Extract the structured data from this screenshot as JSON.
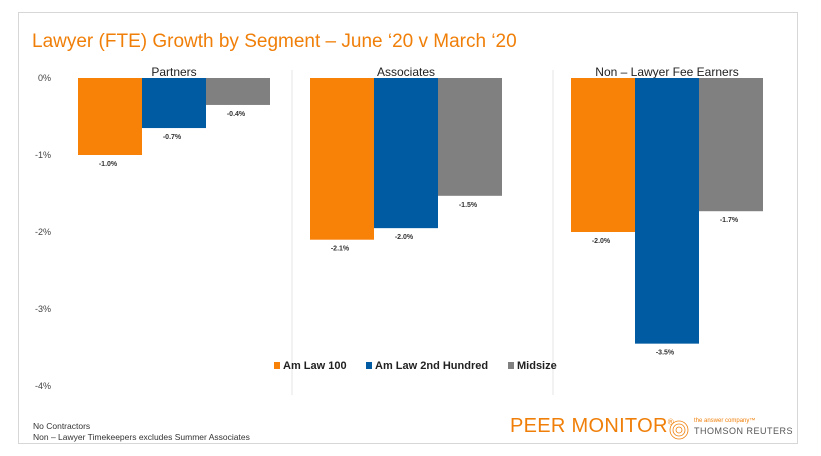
{
  "title": "Lawyer (FTE) Growth by Segment – June ‘20 v March ‘20",
  "colors": {
    "Am Law 100": "#f88108",
    "Am Law 2nd Hundred": "#005ba3",
    "Midsize": "#808080",
    "title": "#f07f09"
  },
  "chart_data": {
    "type": "bar",
    "title": "Lawyer (FTE) Growth by Segment – June ‘20 v March ‘20",
    "categories": [
      "Partners",
      "Associates",
      "Non – Lawyer Fee Earners"
    ],
    "series": [
      {
        "name": "Am Law 100",
        "values": [
          -1.0,
          -2.1,
          -2.0
        ],
        "labels": [
          "-1.0%",
          "-2.1%",
          "-2.0%"
        ]
      },
      {
        "name": "Am Law 2nd Hundred",
        "values": [
          -0.65,
          -1.95,
          -3.45
        ],
        "labels": [
          "-0.7%",
          "-2.0%",
          "-3.5%"
        ]
      },
      {
        "name": "Midsize",
        "values": [
          -0.35,
          -1.53,
          -1.73
        ],
        "labels": [
          "-0.4%",
          "-1.5%",
          "-1.7%"
        ]
      }
    ],
    "yticks": [
      "0%",
      "-1%",
      "-2%",
      "-3%",
      "-4%"
    ],
    "ytick_values": [
      0,
      -1,
      -2,
      -3,
      -4
    ],
    "ylim": [
      -4,
      0
    ],
    "xlabel": "",
    "ylabel": "",
    "legend_position": "bottom-center",
    "grid": false
  },
  "footnotes": [
    "No Contractors",
    "Non – Lawyer Timekeepers excludes Summer Associates"
  ],
  "brand": {
    "name": "PEER MONITOR",
    "mark": "®",
    "tagline": "the answer company™",
    "company": "THOMSON REUTERS"
  }
}
